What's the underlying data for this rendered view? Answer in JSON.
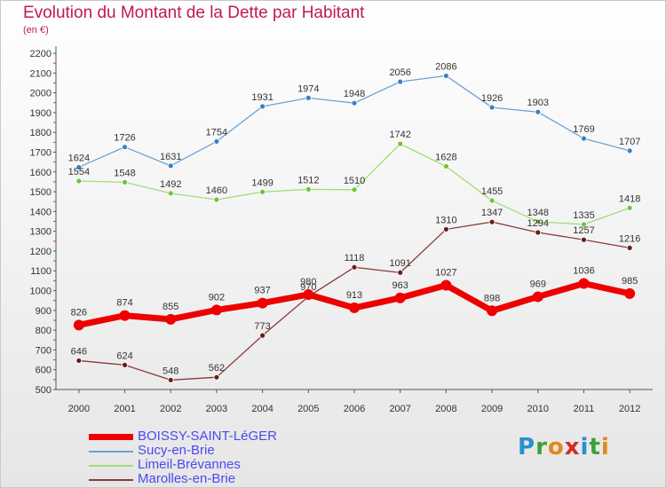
{
  "header": {
    "title": "Evolution du Montant de la Dette par Habitant",
    "subtitle": "(en €)"
  },
  "logo": {
    "text": "Proxiti",
    "letters": [
      "P",
      "r",
      "o",
      "x",
      "i",
      "t",
      "i"
    ],
    "colors": [
      "#2a8fd0",
      "#3aa23a",
      "#e08a1a",
      "#d02a2a",
      "#2a8fd0",
      "#3aa23a",
      "#e08a1a"
    ]
  },
  "chart_data": {
    "type": "line",
    "title": "Evolution du Montant de la Dette par Habitant",
    "subtitle": "(en €)",
    "xlabel": "",
    "ylabel": "",
    "x": [
      "2000",
      "2001",
      "2002",
      "2003",
      "2004",
      "2005",
      "2006",
      "2007",
      "2008",
      "2009",
      "2010",
      "2011",
      "2012"
    ],
    "ylim": [
      500,
      2200
    ],
    "yticks": [
      500,
      600,
      700,
      800,
      900,
      1000,
      1100,
      1200,
      1300,
      1400,
      1500,
      1600,
      1700,
      1800,
      1900,
      2000,
      2100,
      2200
    ],
    "grid": false,
    "legend": "bottom-left",
    "series": [
      {
        "name": "Sucy-en-Brie",
        "color": "#6aa2d8",
        "marker": "#3b7fc4",
        "width": 1.3,
        "values": [
          1624,
          1726,
          1631,
          1754,
          1931,
          1974,
          1948,
          2056,
          2086,
          1926,
          1903,
          1769,
          1707
        ]
      },
      {
        "name": "Limeil-Brévannes",
        "color": "#a6da7a",
        "marker": "#6cc43a",
        "width": 1.3,
        "values": [
          1554,
          1548,
          1492,
          1460,
          1499,
          1512,
          1510,
          1742,
          1628,
          1455,
          1348,
          1335,
          1418
        ]
      },
      {
        "name": "Marolles-en-Brie",
        "color": "#8a3a3a",
        "marker": "#6b1a1a",
        "width": 1.3,
        "values": [
          646,
          624,
          548,
          562,
          773,
          970,
          1118,
          1091,
          1310,
          1347,
          1294,
          1257,
          1216
        ]
      },
      {
        "name": "BOISSY-SAINT-LéGER",
        "color": "#ee0000",
        "marker": "#ee0000",
        "width": 7,
        "values": [
          826,
          874,
          855,
          902,
          937,
          980,
          913,
          963,
          1027,
          898,
          969,
          1036,
          985
        ]
      }
    ],
    "legend_order": [
      "BOISSY-SAINT-LéGER",
      "Sucy-en-Brie",
      "Limeil-Brévannes",
      "Marolles-en-Brie"
    ]
  }
}
